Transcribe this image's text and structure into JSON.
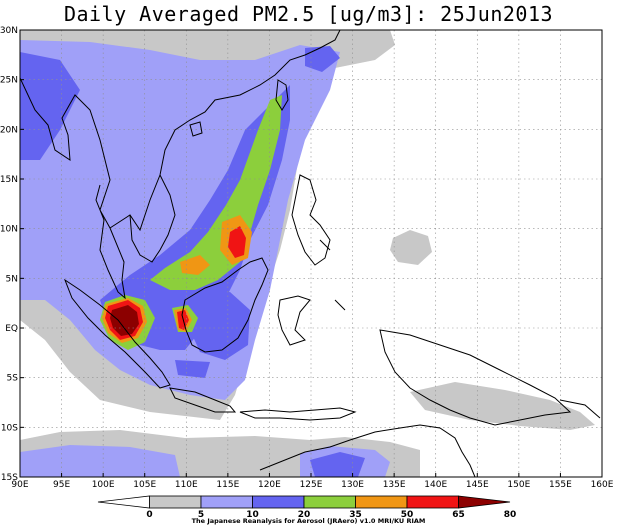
{
  "title": "Daily Averaged PM2.5 [ug/m3]: 25Jun2013",
  "credit": "The Japanese Reanalysis for Aerosol (JRAero) v1.0 MRI/KU RIAM",
  "map": {
    "lon_range": [
      90,
      160
    ],
    "lat_range": [
      -15,
      30
    ],
    "lon_ticks": [
      "90E",
      "95E",
      "100E",
      "105E",
      "110E",
      "115E",
      "120E",
      "125E",
      "130E",
      "135E",
      "140E",
      "145E",
      "150E",
      "155E",
      "160E"
    ],
    "lat_ticks": [
      "15S",
      "10S",
      "5S",
      "EQ",
      "5N",
      "10N",
      "15N",
      "20N",
      "25N",
      "30N"
    ],
    "grid": true
  },
  "colorbar": {
    "labels": [
      "0",
      "5",
      "10",
      "20",
      "35",
      "50",
      "65",
      "80"
    ],
    "colors": [
      "#ffffff",
      "#c8c8c8",
      "#a0a0f8",
      "#6464f0",
      "#8ccf3c",
      "#f09614",
      "#f01414",
      "#8c0000"
    ]
  }
}
